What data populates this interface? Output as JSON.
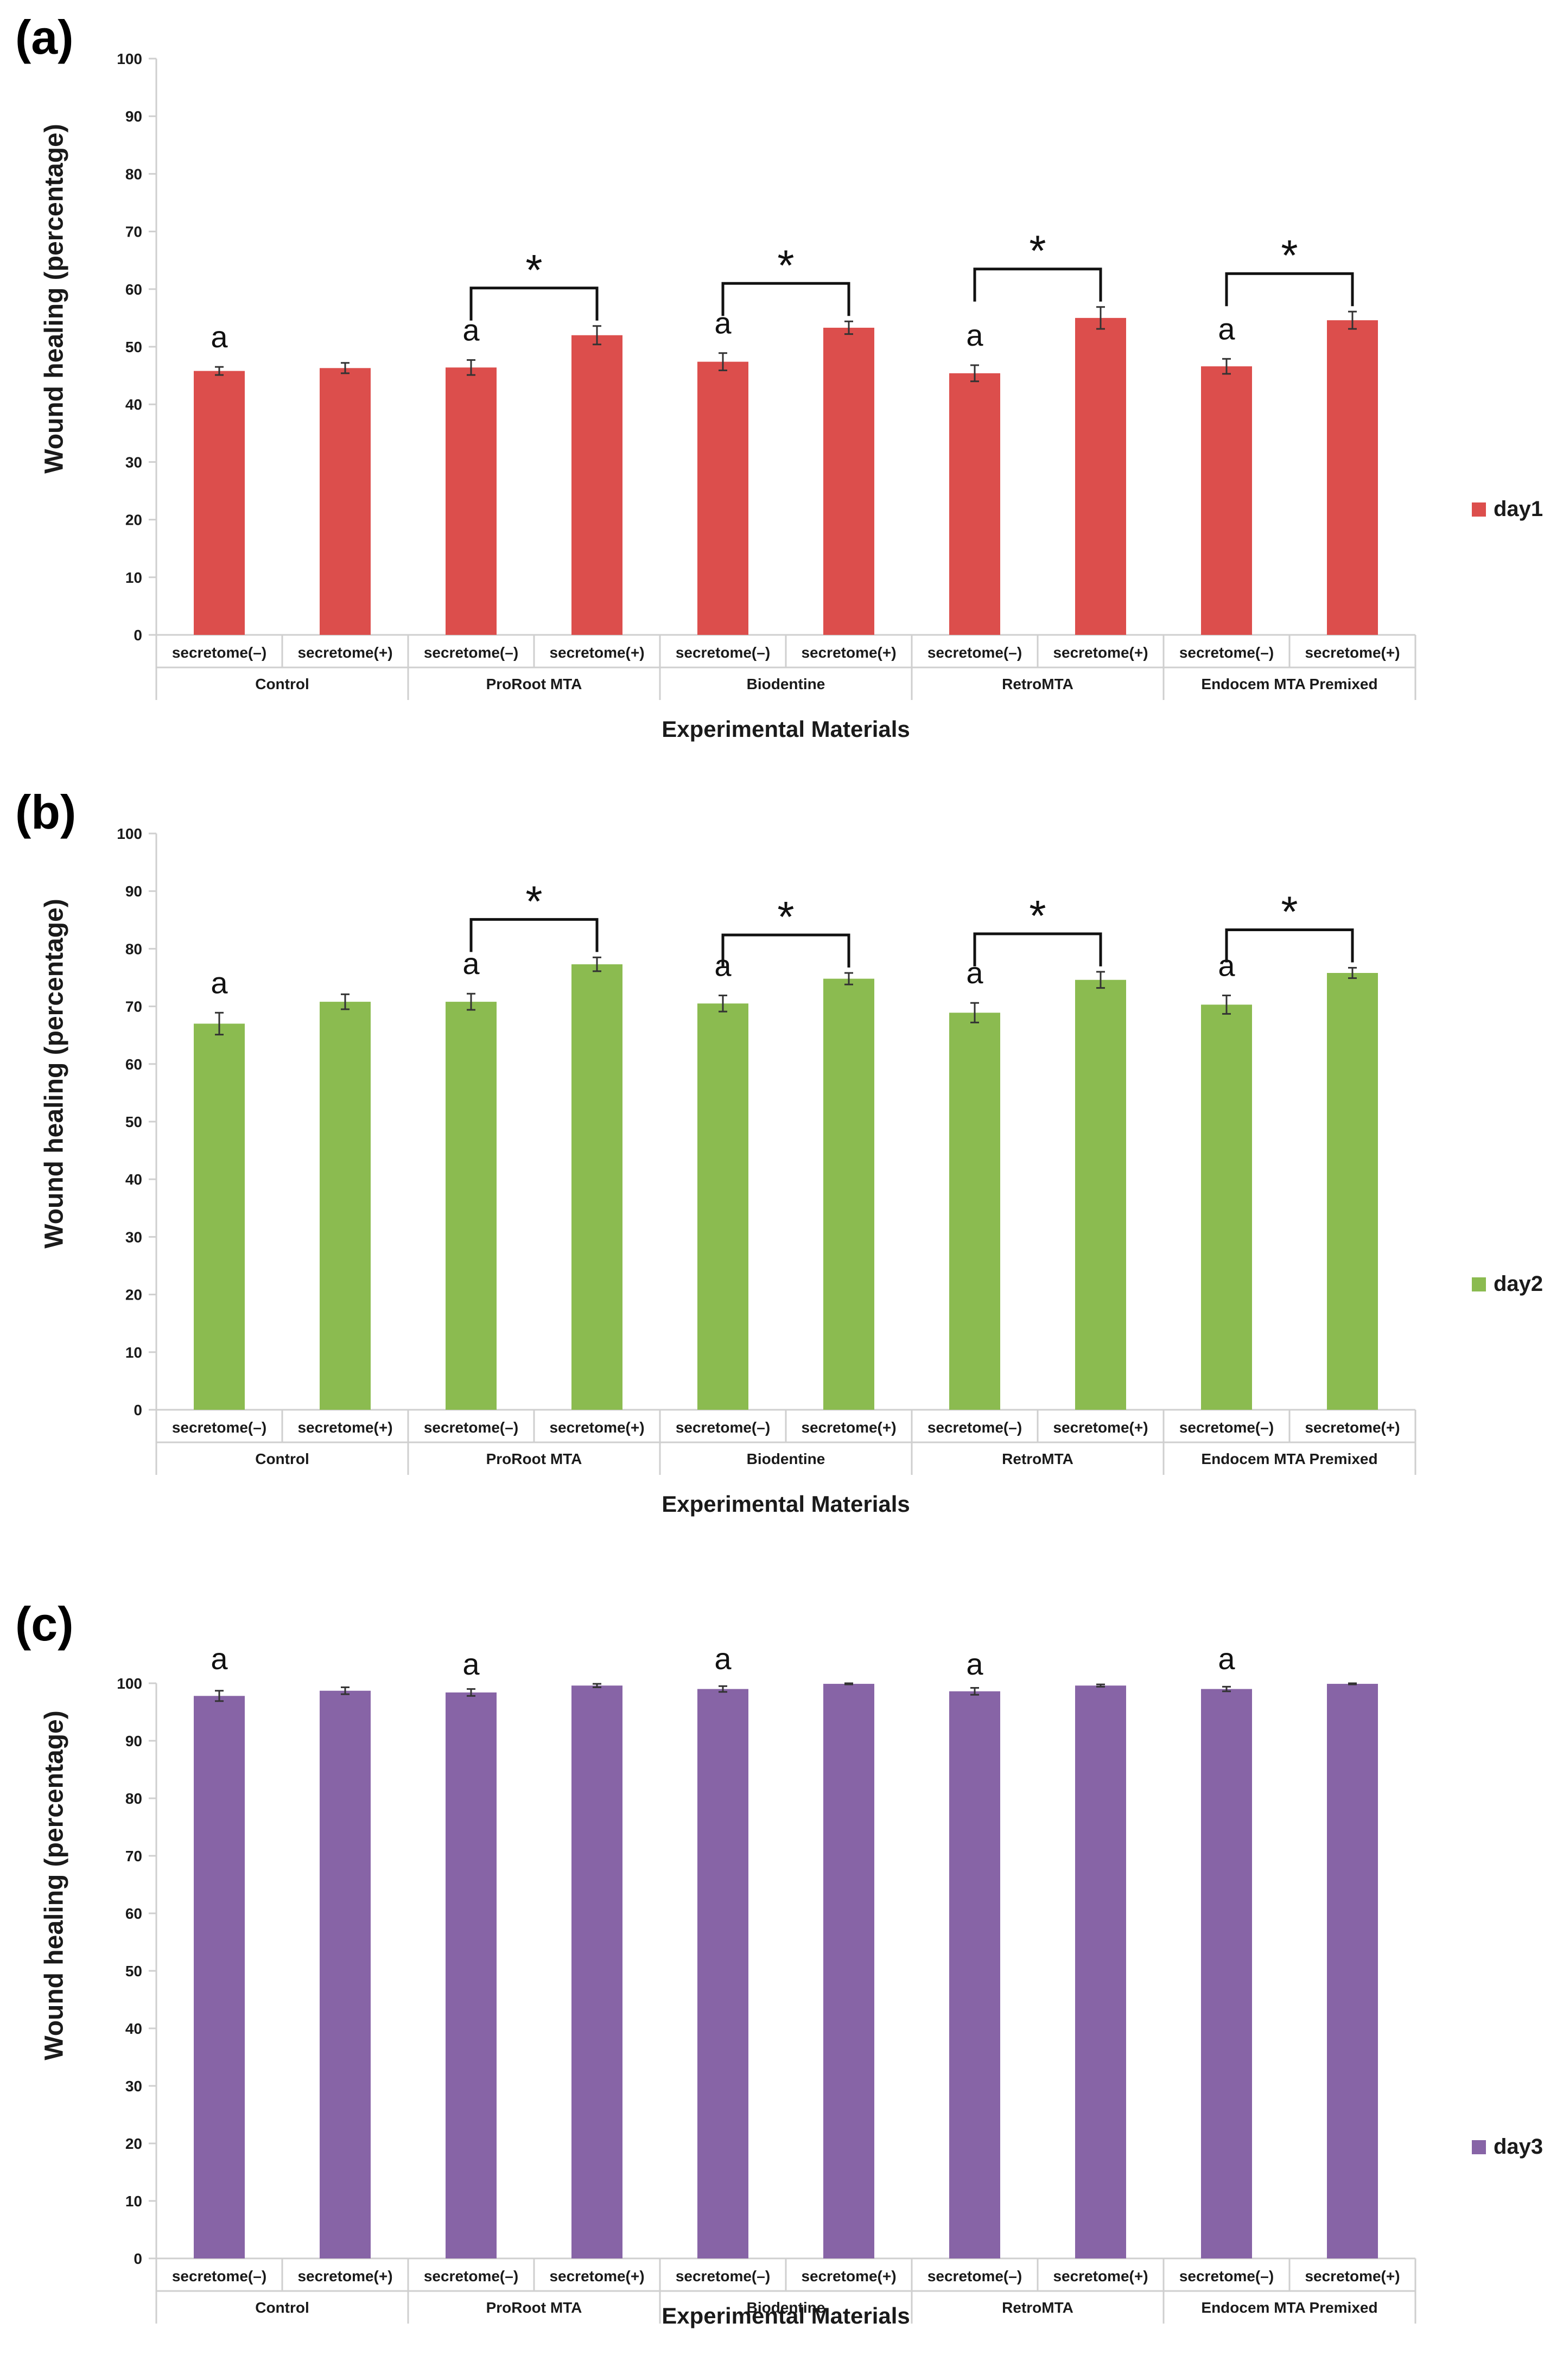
{
  "colors": {
    "day1": "#dc4e4c",
    "day2": "#8bbb50",
    "day3": "#8764a6",
    "axis": "#cfcfcf",
    "text": "#1a1a1a"
  },
  "xlabel": "Experimental Materials",
  "ylabel": "Wound healing (percentage)",
  "chart_data": [
    {
      "type": "bar",
      "panel": "(a)",
      "legend": "day1",
      "color_key": "day1",
      "ylim": [
        0,
        100
      ],
      "yticks": [
        0,
        10,
        20,
        30,
        40,
        50,
        60,
        70,
        80,
        90,
        100
      ],
      "groups": [
        "Control",
        "ProRoot MTA",
        "Biodentine",
        "RetroMTA",
        "Endocem MTA Premixed"
      ],
      "categories": [
        "secretome(–)",
        "secretome(+)",
        "secretome(–)",
        "secretome(+)",
        "secretome(–)",
        "secretome(+)",
        "secretome(–)",
        "secretome(+)",
        "secretome(–)",
        "secretome(+)"
      ],
      "values": [
        45.8,
        46.3,
        46.4,
        52.0,
        47.4,
        53.3,
        45.4,
        55.0,
        46.6,
        54.6
      ],
      "errors": [
        0.7,
        0.9,
        1.3,
        1.6,
        1.5,
        1.1,
        1.4,
        1.9,
        1.3,
        1.5
      ],
      "letters": [
        {
          "bar": 0,
          "text": "a"
        },
        {
          "bar": 2,
          "text": "a"
        },
        {
          "bar": 4,
          "text": "a"
        },
        {
          "bar": 6,
          "text": "a"
        },
        {
          "bar": 8,
          "text": "a"
        }
      ],
      "brackets": [
        {
          "from": 2,
          "to": 3,
          "text": "*"
        },
        {
          "from": 4,
          "to": 5,
          "text": "*"
        },
        {
          "from": 6,
          "to": 7,
          "text": "*"
        },
        {
          "from": 8,
          "to": 9,
          "text": "*"
        }
      ]
    },
    {
      "type": "bar",
      "panel": "(b)",
      "legend": "day2",
      "color_key": "day2",
      "ylim": [
        0,
        100
      ],
      "yticks": [
        0,
        10,
        20,
        30,
        40,
        50,
        60,
        70,
        80,
        90,
        100
      ],
      "groups": [
        "Control",
        "ProRoot MTA",
        "Biodentine",
        "RetroMTA",
        "Endocem MTA Premixed"
      ],
      "categories": [
        "secretome(–)",
        "secretome(+)",
        "secretome(–)",
        "secretome(+)",
        "secretome(–)",
        "secretome(+)",
        "secretome(–)",
        "secretome(+)",
        "secretome(–)",
        "secretome(+)"
      ],
      "values": [
        67.0,
        70.8,
        70.8,
        77.3,
        70.5,
        74.8,
        68.9,
        74.6,
        70.3,
        75.8
      ],
      "errors": [
        1.9,
        1.3,
        1.4,
        1.2,
        1.4,
        1.0,
        1.7,
        1.4,
        1.6,
        0.9
      ],
      "letters": [
        {
          "bar": 0,
          "text": "a"
        },
        {
          "bar": 2,
          "text": "a"
        },
        {
          "bar": 4,
          "text": "a"
        },
        {
          "bar": 6,
          "text": "a"
        },
        {
          "bar": 8,
          "text": "a"
        }
      ],
      "brackets": [
        {
          "from": 2,
          "to": 3,
          "text": "*"
        },
        {
          "from": 4,
          "to": 5,
          "text": "*"
        },
        {
          "from": 6,
          "to": 7,
          "text": "*"
        },
        {
          "from": 8,
          "to": 9,
          "text": "*"
        }
      ]
    },
    {
      "type": "bar",
      "panel": "(c)",
      "legend": "day3",
      "color_key": "day3",
      "ylim": [
        0,
        100
      ],
      "yticks": [
        0,
        10,
        20,
        30,
        40,
        50,
        60,
        70,
        80,
        90,
        100
      ],
      "groups": [
        "Control",
        "ProRoot MTA",
        "Biodentine",
        "RetroMTA",
        "Endocem MTA Premixed"
      ],
      "categories": [
        "secretome(–)",
        "secretome(+)",
        "secretome(–)",
        "secretome(+)",
        "secretome(–)",
        "secretome(+)",
        "secretome(–)",
        "secretome(+)",
        "secretome(–)",
        "secretome(+)"
      ],
      "values": [
        97.8,
        98.7,
        98.4,
        99.6,
        99.0,
        99.9,
        98.6,
        99.6,
        99.0,
        99.9
      ],
      "errors": [
        0.9,
        0.6,
        0.6,
        0.3,
        0.5,
        0.1,
        0.6,
        0.2,
        0.4,
        0.1
      ],
      "letters": [
        {
          "bar": 0,
          "text": "a"
        },
        {
          "bar": 2,
          "text": "a"
        },
        {
          "bar": 4,
          "text": "a"
        },
        {
          "bar": 6,
          "text": "a"
        },
        {
          "bar": 8,
          "text": "a"
        }
      ],
      "brackets": []
    }
  ]
}
